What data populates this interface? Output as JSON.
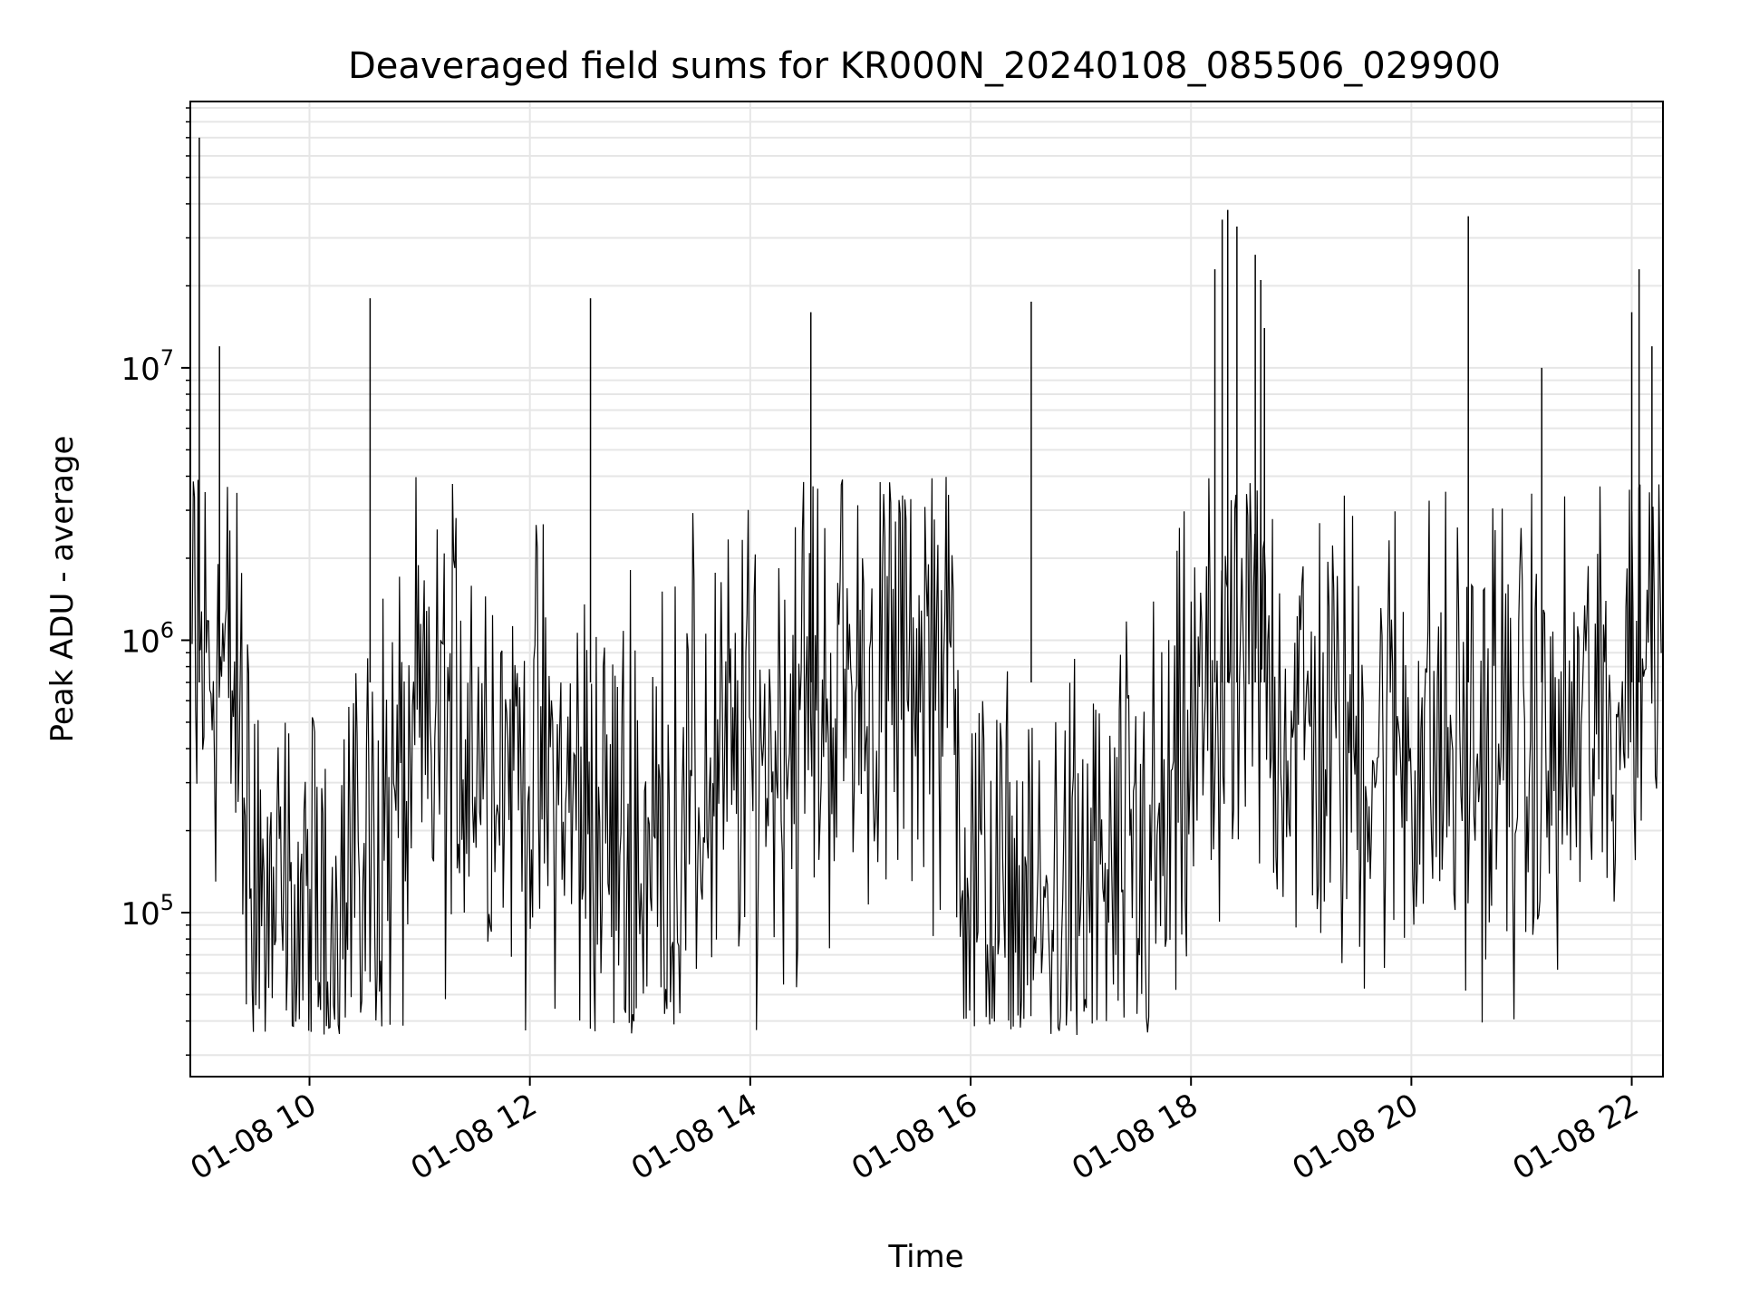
{
  "chart_data": {
    "type": "line",
    "title": "Deaveraged field sums for KR000N_20240108_085506_029900",
    "xlabel": "Time",
    "ylabel": "Peak ADU - average",
    "xscale": "time",
    "yscale": "log",
    "xlim": [
      "2024-01-08 08:55:06",
      "2024-01-08 22:17:00"
    ],
    "ylim": [
      25000,
      95000000
    ],
    "grid": true,
    "legend": "none",
    "x_ticks": [
      "01-08 10",
      "01-08 12",
      "01-08 14",
      "01-08 16",
      "01-08 18",
      "01-08 20",
      "01-08 22"
    ],
    "y_ticks": [
      {
        "base": "10",
        "exp": "5",
        "value": 100000
      },
      {
        "base": "10",
        "exp": "6",
        "value": 1000000
      },
      {
        "base": "10",
        "exp": "7",
        "value": 10000000
      }
    ],
    "series": [
      {
        "color": "#000000",
        "x": [
          "2024-01-08 09:00",
          "2024-01-08 09:10",
          "2024-01-08 09:20",
          "2024-01-08 09:30",
          "2024-01-08 09:40",
          "2024-01-08 09:50",
          "2024-01-08 10:00",
          "2024-01-08 10:10",
          "2024-01-08 10:20",
          "2024-01-08 10:30",
          "2024-01-08 10:40",
          "2024-01-08 10:50",
          "2024-01-08 11:00",
          "2024-01-08 11:10",
          "2024-01-08 11:20",
          "2024-01-08 11:30",
          "2024-01-08 11:40",
          "2024-01-08 11:50",
          "2024-01-08 12:00",
          "2024-01-08 12:10",
          "2024-01-08 12:20",
          "2024-01-08 12:30",
          "2024-01-08 12:40",
          "2024-01-08 12:50",
          "2024-01-08 13:00",
          "2024-01-08 13:10",
          "2024-01-08 13:20",
          "2024-01-08 13:30",
          "2024-01-08 13:40",
          "2024-01-08 13:50",
          "2024-01-08 14:00",
          "2024-01-08 14:10",
          "2024-01-08 14:20",
          "2024-01-08 14:30",
          "2024-01-08 14:40",
          "2024-01-08 14:50",
          "2024-01-08 15:00",
          "2024-01-08 15:10",
          "2024-01-08 15:20",
          "2024-01-08 15:30",
          "2024-01-08 15:40",
          "2024-01-08 15:50",
          "2024-01-08 16:00",
          "2024-01-08 16:10",
          "2024-01-08 16:20",
          "2024-01-08 16:30",
          "2024-01-08 16:40",
          "2024-01-08 16:50",
          "2024-01-08 17:00",
          "2024-01-08 17:10",
          "2024-01-08 17:20",
          "2024-01-08 17:30",
          "2024-01-08 17:40",
          "2024-01-08 17:50",
          "2024-01-08 18:00",
          "2024-01-08 18:10",
          "2024-01-08 18:20",
          "2024-01-08 18:30",
          "2024-01-08 18:40",
          "2024-01-08 18:50",
          "2024-01-08 19:00",
          "2024-01-08 19:10",
          "2024-01-08 19:20",
          "2024-01-08 19:30",
          "2024-01-08 19:40",
          "2024-01-08 19:50",
          "2024-01-08 20:00",
          "2024-01-08 20:10",
          "2024-01-08 20:20",
          "2024-01-08 20:30",
          "2024-01-08 20:40",
          "2024-01-08 20:50",
          "2024-01-08 21:00",
          "2024-01-08 21:10",
          "2024-01-08 21:20",
          "2024-01-08 21:30",
          "2024-01-08 21:40",
          "2024-01-08 21:50",
          "2024-01-08 22:00",
          "2024-01-08 22:10"
        ],
        "y": [
          800000,
          900000,
          600000,
          120000,
          90000,
          80000,
          85000,
          95000,
          130000,
          160000,
          200000,
          260000,
          350000,
          450000,
          500000,
          480000,
          420000,
          380000,
          330000,
          300000,
          260000,
          220000,
          190000,
          170000,
          160000,
          180000,
          210000,
          250000,
          300000,
          330000,
          380000,
          420000,
          500000,
          560000,
          600000,
          650000,
          700000,
          760000,
          800000,
          900000,
          1000000,
          700000,
          130000,
          100000,
          90000,
          85000,
          90000,
          95000,
          100000,
          110000,
          120000,
          130000,
          150000,
          200000,
          380000,
          550000,
          700000,
          900000,
          800000,
          550000,
          500000,
          450000,
          420000,
          400000,
          420000,
          450000,
          440000,
          400000,
          380000,
          360000,
          380000,
          400000,
          380000,
          340000,
          360000,
          450000,
          500000,
          480000,
          900000,
          1200000
        ]
      }
    ],
    "spikes": [
      {
        "x": "2024-01-08 09:00",
        "y": 70000000
      },
      {
        "x": "2024-01-08 09:11",
        "y": 12000000
      },
      {
        "x": "2024-01-08 10:33",
        "y": 18000000
      },
      {
        "x": "2024-01-08 12:33",
        "y": 18000000
      },
      {
        "x": "2024-01-08 14:33",
        "y": 16000000
      },
      {
        "x": "2024-01-08 16:33",
        "y": 17500000
      },
      {
        "x": "2024-01-08 18:13",
        "y": 23000000
      },
      {
        "x": "2024-01-08 18:17",
        "y": 35000000
      },
      {
        "x": "2024-01-08 18:20",
        "y": 38000000
      },
      {
        "x": "2024-01-08 18:25",
        "y": 33000000
      },
      {
        "x": "2024-01-08 18:35",
        "y": 26000000
      },
      {
        "x": "2024-01-08 18:38",
        "y": 21000000
      },
      {
        "x": "2024-01-08 18:40",
        "y": 14000000
      },
      {
        "x": "2024-01-08 20:31",
        "y": 36000000
      },
      {
        "x": "2024-01-08 21:11",
        "y": 10000000
      },
      {
        "x": "2024-01-08 22:00",
        "y": 16000000
      },
      {
        "x": "2024-01-08 22:04",
        "y": 23000000
      },
      {
        "x": "2024-01-08 22:11",
        "y": 12000000
      }
    ]
  }
}
